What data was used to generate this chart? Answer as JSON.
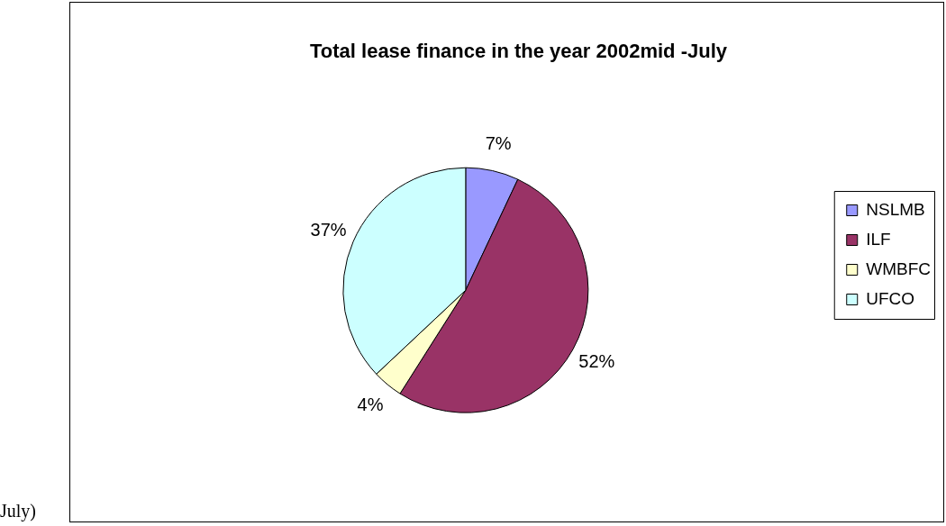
{
  "chart_data": {
    "type": "pie",
    "title": "Total lease finance in the year 2002mid -July",
    "categories": [
      "NSLMB",
      "ILF",
      "WMBFC",
      "UFCO"
    ],
    "values": [
      7,
      52,
      4,
      37
    ],
    "colors": [
      "#9999ff",
      "#993366",
      "#ffffcc",
      "#ccffff"
    ],
    "legend": "right",
    "value_labels": [
      "7%",
      "52%",
      "4%",
      "37%"
    ],
    "annotations": [
      "July)"
    ]
  }
}
